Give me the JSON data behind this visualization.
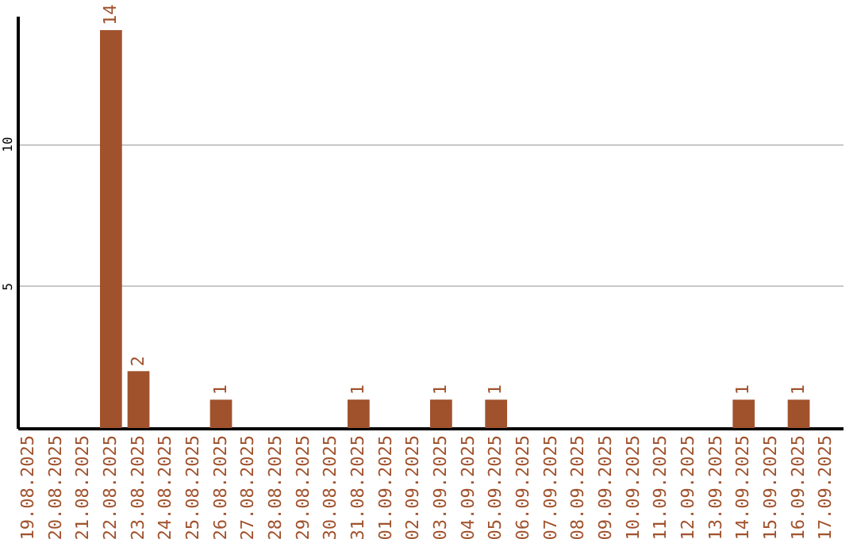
{
  "chart_data": {
    "type": "bar",
    "categories": [
      "19.08.2025",
      "20.08.2025",
      "21.08.2025",
      "22.08.2025",
      "23.08.2025",
      "24.08.2025",
      "25.08.2025",
      "26.08.2025",
      "27.08.2025",
      "28.08.2025",
      "29.08.2025",
      "30.08.2025",
      "31.08.2025",
      "01.09.2025",
      "02.09.2025",
      "03.09.2025",
      "04.09.2025",
      "05.09.2025",
      "06.09.2025",
      "07.09.2025",
      "08.09.2025",
      "09.09.2025",
      "10.09.2025",
      "11.09.2025",
      "12.09.2025",
      "13.09.2025",
      "14.09.2025",
      "15.09.2025",
      "16.09.2025",
      "17.09.2025"
    ],
    "values": [
      0,
      0,
      0,
      14,
      2,
      0,
      0,
      1,
      0,
      0,
      0,
      0,
      1,
      0,
      0,
      1,
      0,
      1,
      0,
      0,
      0,
      0,
      0,
      0,
      0,
      0,
      1,
      0,
      1,
      0
    ],
    "value_labels": [
      null,
      null,
      null,
      "14",
      "2",
      null,
      null,
      "1",
      null,
      null,
      null,
      null,
      "1",
      null,
      null,
      "1",
      null,
      "1",
      null,
      null,
      null,
      null,
      null,
      null,
      null,
      null,
      "1",
      null,
      "1",
      null
    ],
    "color": "#a0522d",
    "ylim": [
      0,
      14.5
    ],
    "yticks": [
      5,
      10
    ],
    "grid": "y"
  }
}
